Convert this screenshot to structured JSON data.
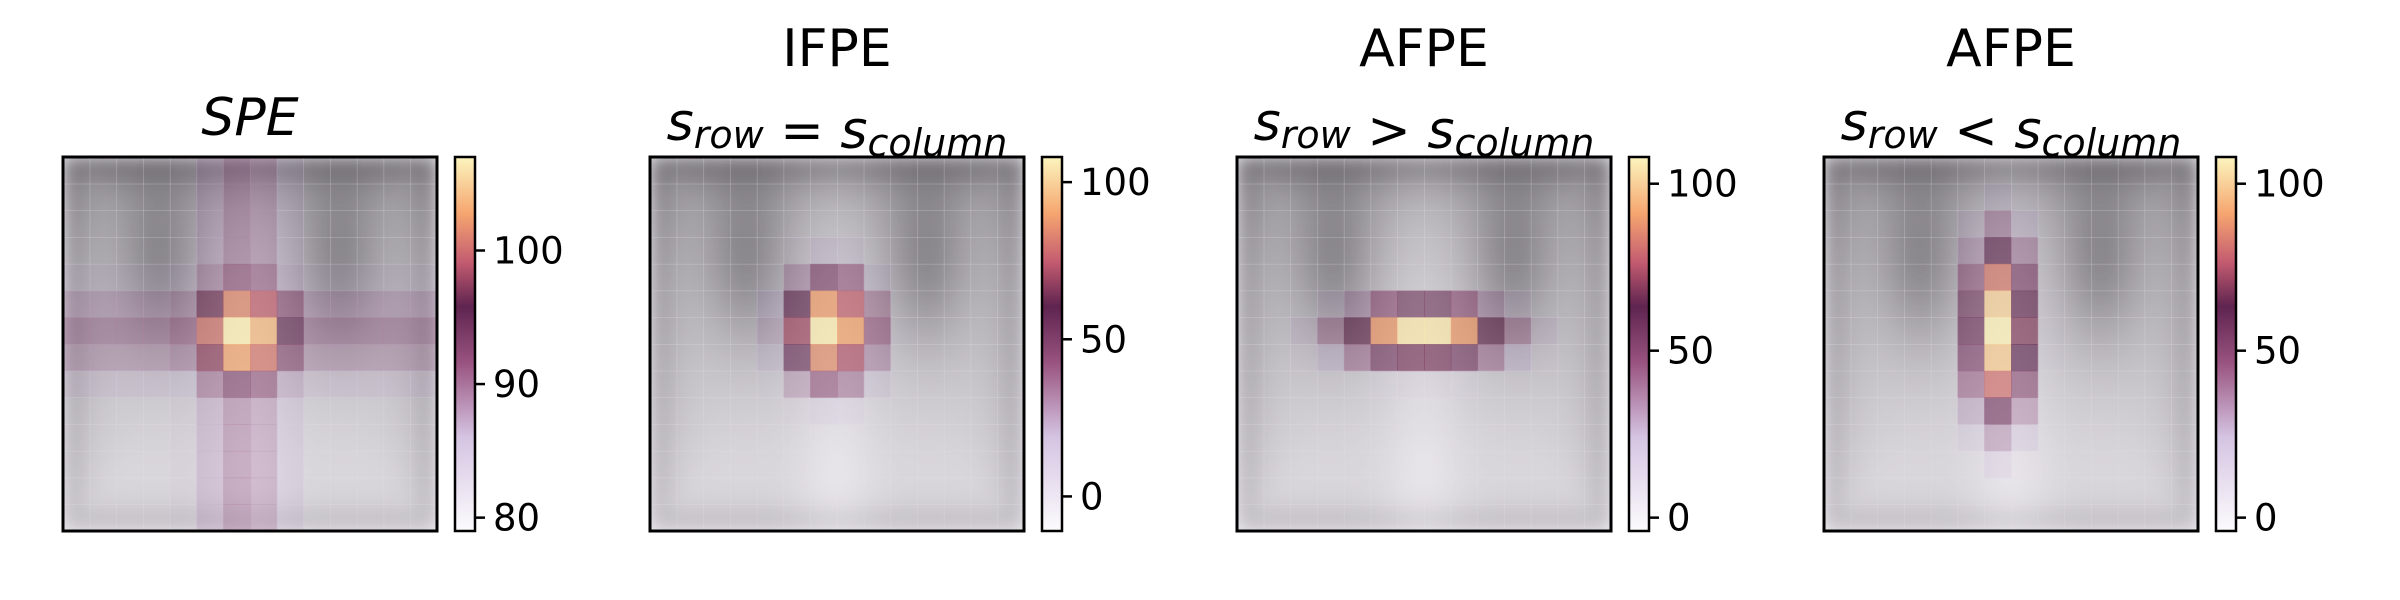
{
  "chart_data": [
    {
      "type": "heatmap",
      "title": "SPE",
      "subtitle": "",
      "colorbar": {
        "ticks": [
          80,
          90,
          100
        ],
        "range": [
          79,
          107
        ]
      },
      "overlay": {
        "center": [
          0.48,
          0.47
        ],
        "spread": [
          0.12,
          0.12
        ],
        "cross": 0.5
      },
      "colormap": "magma_r"
    },
    {
      "type": "heatmap",
      "title": "IFPE",
      "subtitle": "s_row = s_column",
      "colorbar": {
        "ticks": [
          0,
          50,
          100
        ],
        "range": [
          -11,
          108
        ]
      },
      "overlay": {
        "center": [
          0.48,
          0.46
        ],
        "spread": [
          0.1,
          0.12
        ],
        "cross": 0.0
      },
      "colormap": "magma_r"
    },
    {
      "type": "heatmap",
      "title": "AFPE",
      "subtitle": "s_row > s_column",
      "colorbar": {
        "ticks": [
          0,
          50,
          100
        ],
        "range": [
          -4,
          108
        ]
      },
      "overlay": {
        "center": [
          0.5,
          0.47
        ],
        "spread": [
          0.18,
          0.07
        ],
        "cross": 0.0
      },
      "colormap": "magma_r"
    },
    {
      "type": "heatmap",
      "title": "AFPE",
      "subtitle": "s_row < s_column",
      "colorbar": {
        "ticks": [
          0,
          50,
          100
        ],
        "range": [
          -4,
          108
        ]
      },
      "overlay": {
        "center": [
          0.47,
          0.46
        ],
        "spread": [
          0.07,
          0.2
        ],
        "cross": 0.0
      },
      "colormap": "magma_r"
    }
  ]
}
